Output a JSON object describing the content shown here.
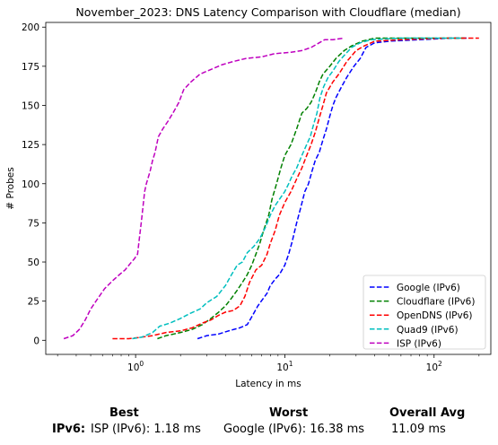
{
  "chart_data": {
    "type": "line",
    "title": "November_2023: DNS Latency Comparison with Cloudflare (median)",
    "xlabel": "Latency in ms",
    "ylabel": "# Probes",
    "x_scale": "log",
    "xlim": [
      0.25,
      240
    ],
    "ylim": [
      -9,
      203
    ],
    "x_ticks": [
      1,
      10,
      100
    ],
    "x_tick_labels": [
      "10^0",
      "10^1",
      "10^2"
    ],
    "y_ticks": [
      0,
      25,
      50,
      75,
      100,
      125,
      150,
      175,
      200
    ],
    "grid": false,
    "legend_position": "lower-right",
    "series": [
      {
        "name": "Google (IPv6)",
        "color": "#0000ff",
        "points": [
          [
            2.6,
            1
          ],
          [
            3.0,
            3
          ],
          [
            3.6,
            4
          ],
          [
            4.2,
            6
          ],
          [
            5.0,
            8
          ],
          [
            5.6,
            10
          ],
          [
            6.0,
            15
          ],
          [
            6.6,
            22
          ],
          [
            7.2,
            27
          ],
          [
            7.6,
            30
          ],
          [
            8.0,
            35
          ],
          [
            8.6,
            39
          ],
          [
            9.2,
            42
          ],
          [
            10.0,
            48
          ],
          [
            10.6,
            55
          ],
          [
            11.2,
            63
          ],
          [
            12.0,
            75
          ],
          [
            12.8,
            85
          ],
          [
            13.6,
            95
          ],
          [
            14.4,
            100
          ],
          [
            15.2,
            108
          ],
          [
            16.0,
            115
          ],
          [
            17.0,
            120
          ],
          [
            18.0,
            128
          ],
          [
            19.0,
            135
          ],
          [
            20.0,
            143
          ],
          [
            21.0,
            150
          ],
          [
            22.0,
            155
          ],
          [
            24.0,
            162
          ],
          [
            26.0,
            168
          ],
          [
            29.0,
            175
          ],
          [
            32.0,
            180
          ],
          [
            35.0,
            187
          ],
          [
            40.0,
            190
          ],
          [
            50.0,
            191
          ],
          [
            80.0,
            192
          ],
          [
            130.0,
            193
          ],
          [
            170.0,
            193
          ]
        ]
      },
      {
        "name": "Cloudflare (IPv6)",
        "color": "#008000",
        "points": [
          [
            1.4,
            1
          ],
          [
            1.6,
            3
          ],
          [
            1.8,
            4
          ],
          [
            2.0,
            5
          ],
          [
            2.4,
            7
          ],
          [
            2.8,
            10
          ],
          [
            3.2,
            14
          ],
          [
            3.6,
            18
          ],
          [
            4.0,
            22
          ],
          [
            4.4,
            27
          ],
          [
            4.8,
            32
          ],
          [
            5.2,
            37
          ],
          [
            5.6,
            42
          ],
          [
            6.0,
            48
          ],
          [
            6.4,
            55
          ],
          [
            6.8,
            62
          ],
          [
            7.2,
            70
          ],
          [
            7.8,
            80
          ],
          [
            8.2,
            90
          ],
          [
            8.8,
            100
          ],
          [
            9.4,
            110
          ],
          [
            10.0,
            118
          ],
          [
            11.0,
            125
          ],
          [
            12.0,
            135
          ],
          [
            13.0,
            145
          ],
          [
            14.0,
            148
          ],
          [
            15.0,
            152
          ],
          [
            16.0,
            158
          ],
          [
            17.0,
            165
          ],
          [
            18.0,
            170
          ],
          [
            20.0,
            175
          ],
          [
            22.0,
            180
          ],
          [
            25.0,
            185
          ],
          [
            28.0,
            188
          ],
          [
            33.0,
            191
          ],
          [
            40.0,
            193
          ],
          [
            60.0,
            193
          ],
          [
            120.0,
            193
          ],
          [
            160.0,
            193
          ]
        ]
      },
      {
        "name": "OpenDNS (IPv6)",
        "color": "#ff0000",
        "points": [
          [
            0.7,
            1
          ],
          [
            0.9,
            1
          ],
          [
            1.1,
            2
          ],
          [
            1.3,
            3
          ],
          [
            1.6,
            5
          ],
          [
            2.0,
            6
          ],
          [
            2.4,
            8
          ],
          [
            2.8,
            11
          ],
          [
            3.2,
            13
          ],
          [
            3.6,
            16
          ],
          [
            4.0,
            18
          ],
          [
            4.5,
            19
          ],
          [
            5.0,
            22
          ],
          [
            5.4,
            28
          ],
          [
            5.8,
            37
          ],
          [
            6.4,
            45
          ],
          [
            7.0,
            48
          ],
          [
            7.6,
            55
          ],
          [
            8.0,
            62
          ],
          [
            8.6,
            70
          ],
          [
            9.2,
            80
          ],
          [
            10.0,
            88
          ],
          [
            11.0,
            95
          ],
          [
            12.0,
            103
          ],
          [
            13.0,
            110
          ],
          [
            14.0,
            118
          ],
          [
            15.0,
            125
          ],
          [
            16.0,
            133
          ],
          [
            17.0,
            142
          ],
          [
            18.0,
            150
          ],
          [
            19.0,
            158
          ],
          [
            21.0,
            165
          ],
          [
            23.0,
            170
          ],
          [
            26.0,
            178
          ],
          [
            30.0,
            185
          ],
          [
            34.0,
            188
          ],
          [
            40.0,
            191
          ],
          [
            60.0,
            192
          ],
          [
            120.0,
            193
          ],
          [
            200.0,
            193
          ]
        ]
      },
      {
        "name": "Quad9 (IPv6)",
        "color": "#00bfbf",
        "points": [
          [
            0.95,
            1
          ],
          [
            1.1,
            2
          ],
          [
            1.3,
            5
          ],
          [
            1.45,
            9
          ],
          [
            1.7,
            11
          ],
          [
            2.0,
            14
          ],
          [
            2.3,
            17
          ],
          [
            2.7,
            20
          ],
          [
            3.0,
            24
          ],
          [
            3.5,
            28
          ],
          [
            4.0,
            35
          ],
          [
            4.4,
            42
          ],
          [
            4.8,
            48
          ],
          [
            5.2,
            50
          ],
          [
            5.6,
            56
          ],
          [
            6.2,
            60
          ],
          [
            6.8,
            65
          ],
          [
            7.4,
            72
          ],
          [
            8.0,
            80
          ],
          [
            8.6,
            86
          ],
          [
            9.2,
            90
          ],
          [
            10.0,
            95
          ],
          [
            10.6,
            100
          ],
          [
            11.2,
            105
          ],
          [
            12.0,
            110
          ],
          [
            13.0,
            118
          ],
          [
            14.0,
            125
          ],
          [
            14.8,
            130
          ],
          [
            15.6,
            138
          ],
          [
            16.4,
            145
          ],
          [
            17.2,
            155
          ],
          [
            18.2,
            162
          ],
          [
            19.5,
            168
          ],
          [
            21.0,
            172
          ],
          [
            23.0,
            178
          ],
          [
            25.0,
            182
          ],
          [
            28.0,
            187
          ],
          [
            32.0,
            190
          ],
          [
            38.0,
            192
          ],
          [
            60.0,
            193
          ],
          [
            120.0,
            193
          ],
          [
            150.0,
            193
          ]
        ]
      },
      {
        "name": "ISP (IPv6)",
        "color": "#bf00bf",
        "points": [
          [
            0.33,
            1
          ],
          [
            0.38,
            3
          ],
          [
            0.42,
            7
          ],
          [
            0.46,
            13
          ],
          [
            0.5,
            20
          ],
          [
            0.56,
            27
          ],
          [
            0.62,
            33
          ],
          [
            0.7,
            38
          ],
          [
            0.78,
            42
          ],
          [
            0.85,
            45
          ],
          [
            0.92,
            49
          ],
          [
            0.98,
            52
          ],
          [
            1.03,
            55
          ],
          [
            1.06,
            65
          ],
          [
            1.09,
            75
          ],
          [
            1.12,
            85
          ],
          [
            1.15,
            95
          ],
          [
            1.18,
            100
          ],
          [
            1.25,
            108
          ],
          [
            1.3,
            115
          ],
          [
            1.35,
            120
          ],
          [
            1.42,
            130
          ],
          [
            1.52,
            135
          ],
          [
            1.65,
            140
          ],
          [
            1.8,
            146
          ],
          [
            1.95,
            152
          ],
          [
            2.1,
            160
          ],
          [
            2.35,
            165
          ],
          [
            2.7,
            170
          ],
          [
            3.2,
            173
          ],
          [
            3.8,
            176
          ],
          [
            4.5,
            178
          ],
          [
            5.5,
            180
          ],
          [
            7.0,
            181
          ],
          [
            8.5,
            183
          ],
          [
            11.0,
            184
          ],
          [
            13.0,
            185
          ],
          [
            15.0,
            187
          ],
          [
            17.0,
            190
          ],
          [
            18.5,
            192
          ],
          [
            21.0,
            192
          ],
          [
            25.0,
            193
          ]
        ]
      }
    ]
  },
  "summary": {
    "headers": {
      "best": "Best",
      "worst": "Worst",
      "avg": "Overall Avg"
    },
    "row_label": "IPv6:",
    "best": "ISP (IPv6): 1.18 ms",
    "worst": "Google (IPv6): 16.38 ms",
    "avg": "11.09 ms"
  }
}
